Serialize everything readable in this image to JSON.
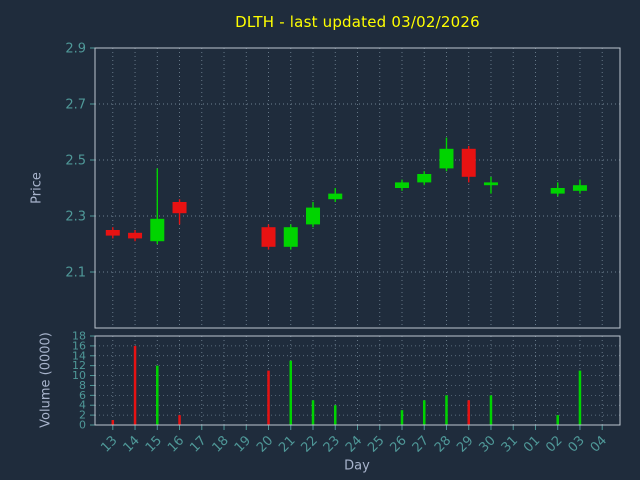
{
  "title": "DLTH - last updated 03/02/2026",
  "axes": {
    "price_label": "Price",
    "volume_label": "Volume (0000)",
    "x_label": "Day"
  },
  "colors": {
    "background": "#1f2c3c",
    "title": "#ffff00",
    "axis_label": "#a8b4cc",
    "tick_label": "#4f9898",
    "grid": "#6e8090",
    "spine": "#bcc6d0",
    "up": "#00d400",
    "down": "#e81212"
  },
  "chart_data": [
    {
      "type": "candlestick",
      "title": "DLTH - last updated 03/02/2026",
      "ylabel": "Price",
      "xlabel": "Day",
      "ylim": [
        1.9,
        2.9
      ],
      "yticks": [
        2.1,
        2.3,
        2.5,
        2.7,
        2.9
      ],
      "grid": true,
      "categories": [
        "13",
        "14",
        "15",
        "16",
        "17",
        "18",
        "19",
        "20",
        "21",
        "22",
        "23",
        "24",
        "25",
        "26",
        "27",
        "28",
        "29",
        "30",
        "31",
        "01",
        "02",
        "03",
        "04"
      ],
      "candles": [
        {
          "day": "13",
          "open": 2.25,
          "high": 2.26,
          "low": 2.22,
          "close": 2.23
        },
        {
          "day": "14",
          "open": 2.24,
          "high": 2.25,
          "low": 2.21,
          "close": 2.22
        },
        {
          "day": "15",
          "open": 2.21,
          "high": 2.47,
          "low": 2.2,
          "close": 2.29
        },
        {
          "day": "16",
          "open": 2.35,
          "high": 2.36,
          "low": 2.27,
          "close": 2.31
        },
        {
          "day": "20",
          "open": 2.26,
          "high": 2.27,
          "low": 2.18,
          "close": 2.19
        },
        {
          "day": "21",
          "open": 2.19,
          "high": 2.27,
          "low": 2.18,
          "close": 2.26
        },
        {
          "day": "22",
          "open": 2.27,
          "high": 2.35,
          "low": 2.26,
          "close": 2.33
        },
        {
          "day": "23",
          "open": 2.36,
          "high": 2.4,
          "low": 2.35,
          "close": 2.38
        },
        {
          "day": "26",
          "open": 2.4,
          "high": 2.43,
          "low": 2.39,
          "close": 2.42
        },
        {
          "day": "27",
          "open": 2.42,
          "high": 2.46,
          "low": 2.41,
          "close": 2.45
        },
        {
          "day": "28",
          "open": 2.47,
          "high": 2.58,
          "low": 2.46,
          "close": 2.54
        },
        {
          "day": "29",
          "open": 2.54,
          "high": 2.55,
          "low": 2.42,
          "close": 2.44
        },
        {
          "day": "30",
          "open": 2.41,
          "high": 2.44,
          "low": 2.38,
          "close": 2.42
        },
        {
          "day": "02",
          "open": 2.38,
          "high": 2.42,
          "low": 2.37,
          "close": 2.4
        },
        {
          "day": "03",
          "open": 2.39,
          "high": 2.43,
          "low": 2.38,
          "close": 2.41
        }
      ]
    },
    {
      "type": "bar",
      "ylabel": "Volume (0000)",
      "ylim": [
        0,
        18
      ],
      "yticks": [
        0,
        2,
        4,
        6,
        8,
        10,
        12,
        14,
        16,
        18
      ],
      "grid": true,
      "bars": [
        {
          "day": "13",
          "value": 1,
          "direction": "down"
        },
        {
          "day": "14",
          "value": 16,
          "direction": "down"
        },
        {
          "day": "15",
          "value": 12,
          "direction": "up"
        },
        {
          "day": "16",
          "value": 2,
          "direction": "down"
        },
        {
          "day": "20",
          "value": 11,
          "direction": "down"
        },
        {
          "day": "21",
          "value": 13,
          "direction": "up"
        },
        {
          "day": "22",
          "value": 5,
          "direction": "up"
        },
        {
          "day": "23",
          "value": 4,
          "direction": "up"
        },
        {
          "day": "26",
          "value": 3,
          "direction": "up"
        },
        {
          "day": "27",
          "value": 5,
          "direction": "up"
        },
        {
          "day": "28",
          "value": 6,
          "direction": "up"
        },
        {
          "day": "29",
          "value": 5,
          "direction": "down"
        },
        {
          "day": "30",
          "value": 6,
          "direction": "up"
        },
        {
          "day": "02",
          "value": 2,
          "direction": "up"
        },
        {
          "day": "03",
          "value": 11,
          "direction": "up"
        }
      ]
    }
  ]
}
